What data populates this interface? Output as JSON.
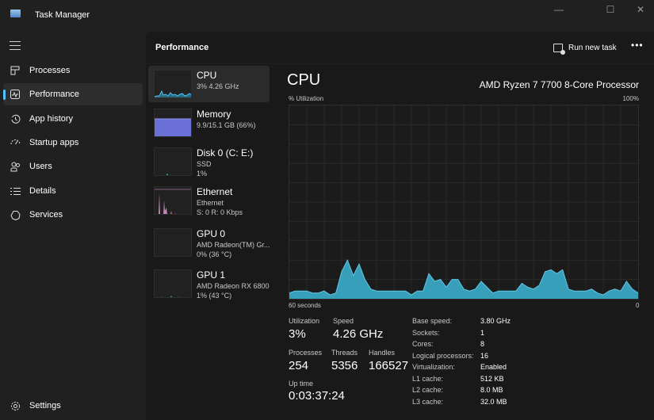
{
  "window": {
    "title": "Task Manager",
    "minimize_icon": "minimize-icon",
    "maximize_icon": "maximize-icon",
    "close_icon": "close-icon"
  },
  "sidebar": {
    "items": [
      {
        "label": "Processes",
        "icon": "processes-icon"
      },
      {
        "label": "Performance",
        "icon": "performance-icon",
        "active": true
      },
      {
        "label": "App history",
        "icon": "app-history-icon"
      },
      {
        "label": "Startup apps",
        "icon": "startup-apps-icon"
      },
      {
        "label": "Users",
        "icon": "users-icon"
      },
      {
        "label": "Details",
        "icon": "details-icon"
      },
      {
        "label": "Services",
        "icon": "services-icon"
      }
    ],
    "settings_label": "Settings"
  },
  "header": {
    "title": "Performance",
    "run_new_task": "Run new task",
    "more": "•••"
  },
  "devices": [
    {
      "name": "CPU",
      "sub1": "3%  4.26 GHz",
      "sub2": "",
      "color": "#4cc2ff",
      "active": true
    },
    {
      "name": "Memory",
      "sub1": "9.9/15.1 GB (66%)",
      "sub2": "",
      "color": "#7b7fe0"
    },
    {
      "name": "Disk 0 (C: E:)",
      "sub1": "SSD",
      "sub2": "1%",
      "color": "#56c9a5"
    },
    {
      "name": "Ethernet",
      "sub1": "Ethernet",
      "sub2": "S: 0 R: 0 Kbps",
      "color": "#e49ad3"
    },
    {
      "name": "GPU 0",
      "sub1": "AMD Radeon(TM) Gr...",
      "sub2": "0%  (36 °C)",
      "color": "#4cc2ff"
    },
    {
      "name": "GPU 1",
      "sub1": "AMD Radeon RX 6800",
      "sub2": "1%  (43 °C)",
      "color": "#4cc2ff"
    }
  ],
  "cpu": {
    "title": "CPU",
    "model": "AMD Ryzen 7 7700 8-Core Processor",
    "y_label": "% Utilization",
    "y_max_label": "100%",
    "x_left_label": "60 seconds",
    "x_right_label": "0",
    "graph_color": "#3aa7c4",
    "stats": {
      "utilization_label": "Utilization",
      "utilization": "3%",
      "speed_label": "Speed",
      "speed": "4.26 GHz",
      "processes_label": "Processes",
      "processes": "254",
      "threads_label": "Threads",
      "threads": "5356",
      "handles_label": "Handles",
      "handles": "166527",
      "uptime_label": "Up time",
      "uptime": "0:03:37:24"
    },
    "specs": [
      {
        "label": "Base speed:",
        "value": "3.80 GHz"
      },
      {
        "label": "Sockets:",
        "value": "1"
      },
      {
        "label": "Cores:",
        "value": "8"
      },
      {
        "label": "Logical processors:",
        "value": "16"
      },
      {
        "label": "Virtualization:",
        "value": "Enabled"
      },
      {
        "label": "L1 cache:",
        "value": "512 KB"
      },
      {
        "label": "L2 cache:",
        "value": "8.0 MB"
      },
      {
        "label": "L3 cache:",
        "value": "32.0 MB"
      }
    ]
  },
  "chart_data": {
    "type": "area",
    "title": "CPU",
    "xlabel": "60 seconds",
    "ylabel": "% Utilization",
    "ylim": [
      0,
      100
    ],
    "xlim": [
      60,
      0
    ],
    "grid": true,
    "x": [
      60,
      59,
      58,
      57,
      56,
      55,
      54,
      53,
      52,
      51,
      50,
      49,
      48,
      47,
      46,
      45,
      44,
      43,
      42,
      41,
      40,
      39,
      38,
      37,
      36,
      35,
      34,
      33,
      32,
      31,
      30,
      29,
      28,
      27,
      26,
      25,
      24,
      23,
      22,
      21,
      20,
      19,
      18,
      17,
      16,
      15,
      14,
      13,
      12,
      11,
      10,
      9,
      8,
      7,
      6,
      5,
      4,
      3,
      2,
      1,
      0
    ],
    "series": [
      {
        "name": "CPU utilization",
        "values": [
          3,
          4,
          4,
          4,
          3,
          3,
          4,
          2,
          3,
          14,
          20,
          12,
          18,
          10,
          5,
          4,
          4,
          4,
          4,
          4,
          4,
          2,
          4,
          4,
          13,
          9,
          10,
          6,
          10,
          10,
          5,
          4,
          5,
          9,
          6,
          3,
          4,
          4,
          4,
          4,
          8,
          6,
          5,
          7,
          14,
          15,
          13,
          15,
          5,
          4,
          4,
          4,
          5,
          3,
          2,
          4,
          5,
          4,
          9,
          5,
          3
        ]
      }
    ]
  }
}
